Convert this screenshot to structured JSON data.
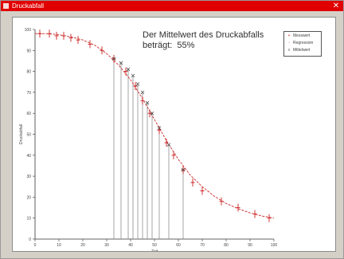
{
  "window": {
    "title": "Druckabfall",
    "close_glyph": "✕",
    "titlebar_color": "#e00000"
  },
  "annotation": {
    "line1": "Der Mittelwert des Druckabfalls",
    "line2": "beträgt:  55%"
  },
  "legend": {
    "placement": "top-right",
    "items": [
      {
        "label": "Messwert",
        "marker": "+"
      },
      {
        "label": "Regression",
        "marker": "-"
      },
      {
        "label": "Mittelwert",
        "marker": "x"
      }
    ]
  },
  "chart_data": {
    "type": "scatter",
    "title": "",
    "xlabel": "Zeit",
    "ylabel": "Druckabfall",
    "xlim": [
      0,
      100
    ],
    "ylim": [
      0,
      100
    ],
    "grid": false,
    "legend_placement": "top-right",
    "x_ticks": [
      0,
      10,
      20,
      30,
      40,
      50,
      60,
      70,
      80,
      90,
      100
    ],
    "y_ticks": [
      0,
      10,
      20,
      30,
      40,
      50,
      60,
      70,
      80,
      90,
      100
    ],
    "series": [
      {
        "name": "Messwert",
        "color": "#cc2020",
        "marker": "+",
        "x": [
          2,
          6,
          9,
          12,
          15,
          18,
          23,
          28,
          33,
          38,
          42,
          45,
          48,
          52,
          55,
          58,
          62,
          66,
          70,
          78,
          85,
          92,
          98
        ],
        "y": [
          98,
          98,
          97,
          97,
          96,
          95,
          93,
          90,
          86,
          80,
          73,
          66,
          60,
          52,
          46,
          40,
          33,
          27,
          23,
          18,
          15,
          12,
          10
        ]
      },
      {
        "name": "Regression",
        "color": "#d04040",
        "marker": "line",
        "x": [
          0,
          5,
          10,
          15,
          20,
          25,
          30,
          35,
          40,
          45,
          50,
          55,
          60,
          65,
          70,
          75,
          80,
          85,
          90,
          95,
          100
        ],
        "y": [
          98,
          98,
          97.5,
          96.5,
          95,
          92.5,
          88.5,
          83,
          76,
          67,
          57,
          47,
          38,
          30.5,
          25,
          20.5,
          17,
          14.5,
          12.5,
          11,
          10
        ]
      },
      {
        "name": "Mittelwert",
        "color": "#808080",
        "marker": "x",
        "x": [
          33,
          36,
          39,
          41,
          43,
          45,
          47,
          49,
          52,
          56,
          62
        ],
        "y": [
          86,
          84,
          81,
          78,
          74,
          70,
          65,
          60,
          53,
          45,
          33
        ]
      }
    ]
  }
}
